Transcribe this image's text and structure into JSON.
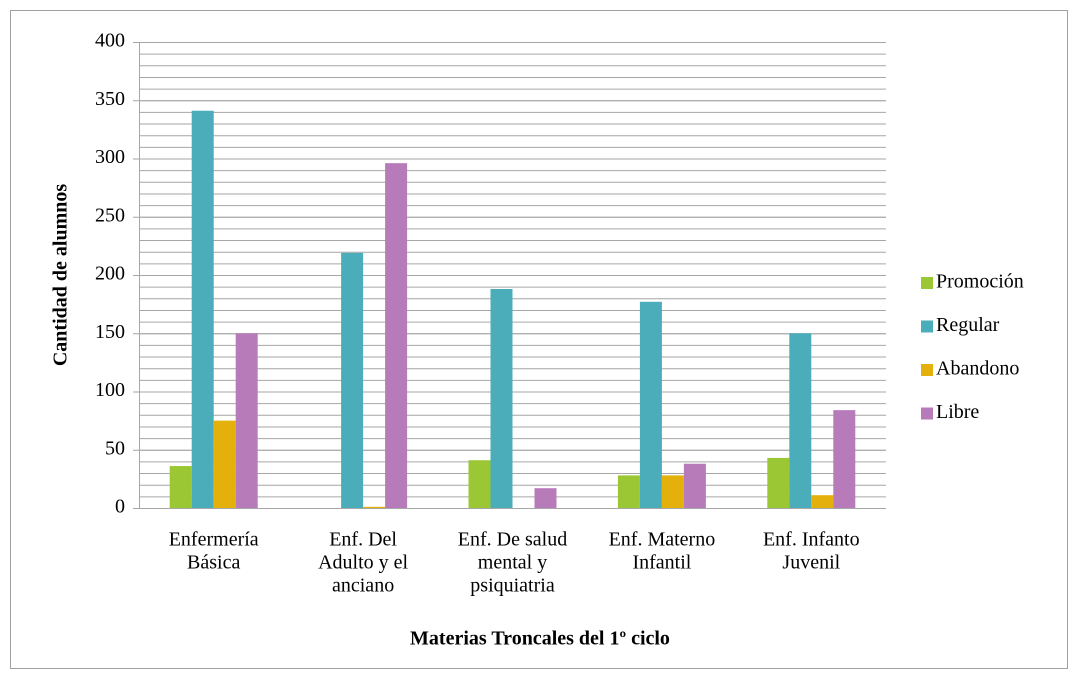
{
  "chart_data": {
    "type": "bar",
    "x_label": "Materias Troncales del 1º ciclo",
    "y_label": "Cantidad de alumnos",
    "categories": [
      [
        "Enfermería",
        "Básica"
      ],
      [
        "Enf. Del",
        "Adulto y el",
        "anciano"
      ],
      [
        "Enf. De salud",
        "mental y",
        "psiquiatria"
      ],
      [
        "Enf. Materno",
        "Infantil"
      ],
      [
        "Enf. Infanto",
        "Juvenil"
      ]
    ],
    "series": [
      {
        "name": "Promoción",
        "color": "#9bc734",
        "values": [
          36,
          0,
          41,
          28,
          43
        ]
      },
      {
        "name": "Regular",
        "color": "#4badb9",
        "values": [
          341,
          219,
          188,
          177,
          150
        ]
      },
      {
        "name": "Abandono",
        "color": "#e4b10c",
        "values": [
          75,
          1,
          0,
          28,
          11
        ]
      },
      {
        "name": "Libre",
        "color": "#b77bba",
        "values": [
          150,
          296,
          17,
          38,
          84
        ]
      }
    ],
    "ylim": [
      0,
      400
    ],
    "yticks": [
      0,
      50,
      100,
      150,
      200,
      250,
      300,
      350,
      400
    ],
    "minor_grid_step": 10,
    "grid": true,
    "legend": "right"
  }
}
